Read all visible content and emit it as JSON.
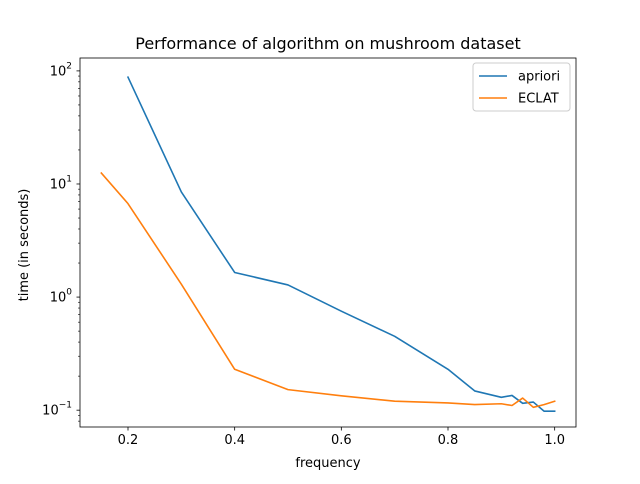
{
  "chart_data": {
    "type": "line",
    "title": "Performance of algorithm on mushroom dataset",
    "xlabel": "frequency",
    "ylabel": "time (in seconds)",
    "xlim": [
      0.11,
      1.04
    ],
    "ylim": [
      0.071,
      130
    ],
    "y_scale": "log",
    "grid": false,
    "legend_position": "top-right",
    "x_ticks": [
      {
        "value": 0.2,
        "label": "0.2"
      },
      {
        "value": 0.4,
        "label": "0.4"
      },
      {
        "value": 0.6,
        "label": "0.6"
      },
      {
        "value": 0.8,
        "label": "0.8"
      },
      {
        "value": 1.0,
        "label": "1.0"
      }
    ],
    "y_ticks": [
      {
        "value": 0.1,
        "base": "10",
        "exp": "−1"
      },
      {
        "value": 1,
        "base": "10",
        "exp": "0"
      },
      {
        "value": 10,
        "base": "10",
        "exp": "1"
      },
      {
        "value": 100,
        "base": "10",
        "exp": "2"
      }
    ],
    "series": [
      {
        "name": "apriori",
        "color": "#1f77b4",
        "x": [
          0.2,
          0.3,
          0.4,
          0.5,
          0.6,
          0.7,
          0.8,
          0.85,
          0.9,
          0.92,
          0.94,
          0.96,
          0.98,
          1.0
        ],
        "y": [
          88,
          8.5,
          1.65,
          1.28,
          0.75,
          0.45,
          0.23,
          0.148,
          0.13,
          0.135,
          0.115,
          0.118,
          0.098,
          0.098
        ]
      },
      {
        "name": "ECLAT",
        "color": "#ff7f0e",
        "x": [
          0.15,
          0.2,
          0.3,
          0.4,
          0.5,
          0.6,
          0.7,
          0.8,
          0.85,
          0.9,
          0.92,
          0.94,
          0.96,
          0.98,
          1.0
        ],
        "y": [
          12.5,
          6.7,
          1.3,
          0.23,
          0.152,
          0.134,
          0.12,
          0.116,
          0.112,
          0.114,
          0.11,
          0.128,
          0.106,
          0.112,
          0.12
        ]
      }
    ]
  }
}
